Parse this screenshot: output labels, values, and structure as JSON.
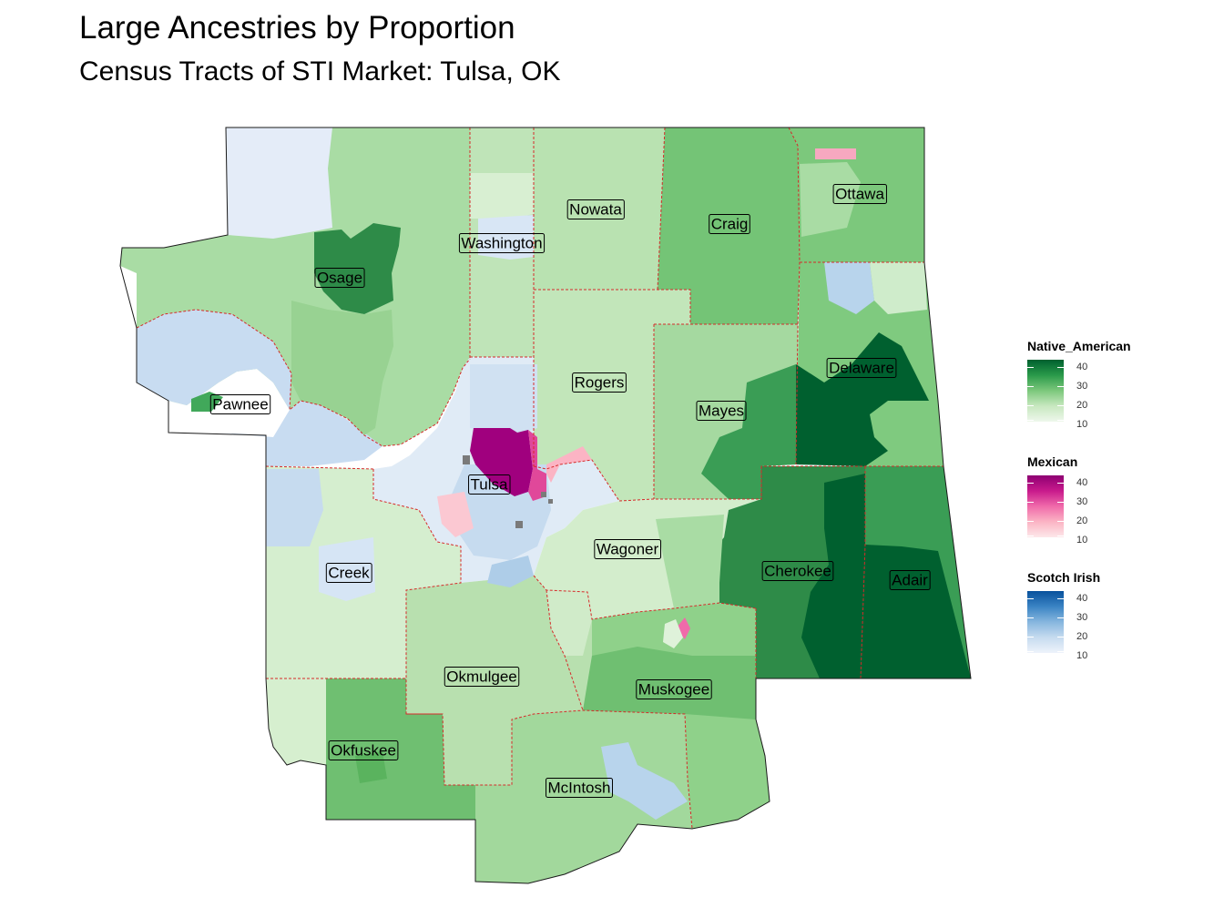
{
  "title": "Large Ancestries by Proportion",
  "subtitle": "Census Tracts of STI Market: Tulsa, OK",
  "counties": [
    "Nowata",
    "Ottawa",
    "Craig",
    "Washington",
    "Osage",
    "Delaware",
    "Rogers",
    "Pawnee",
    "Mayes",
    "Tulsa",
    "Wagoner",
    "Creek",
    "Cherokee",
    "Adair",
    "Okmulgee",
    "Muskogee",
    "Okfuskee",
    "McIntosh"
  ],
  "legends": [
    {
      "title": "Native_American",
      "ticks": [
        "40",
        "30",
        "20",
        "10"
      ],
      "colors": [
        "#00602f",
        "#2a9a4a",
        "#7cc87c",
        "#c8e8c0",
        "#eef7ec"
      ]
    },
    {
      "title": "Mexican",
      "ticks": [
        "40",
        "30",
        "20",
        "10"
      ],
      "colors": [
        "#8e0072",
        "#c81a8c",
        "#f06aaa",
        "#fbb4c4",
        "#fde8ea"
      ]
    },
    {
      "title": "Scotch Irish",
      "ticks": [
        "40",
        "30",
        "20",
        "10"
      ],
      "colors": [
        "#08519c",
        "#3a84c4",
        "#86b6de",
        "#c6dbef",
        "#eef3fb"
      ]
    }
  ]
}
